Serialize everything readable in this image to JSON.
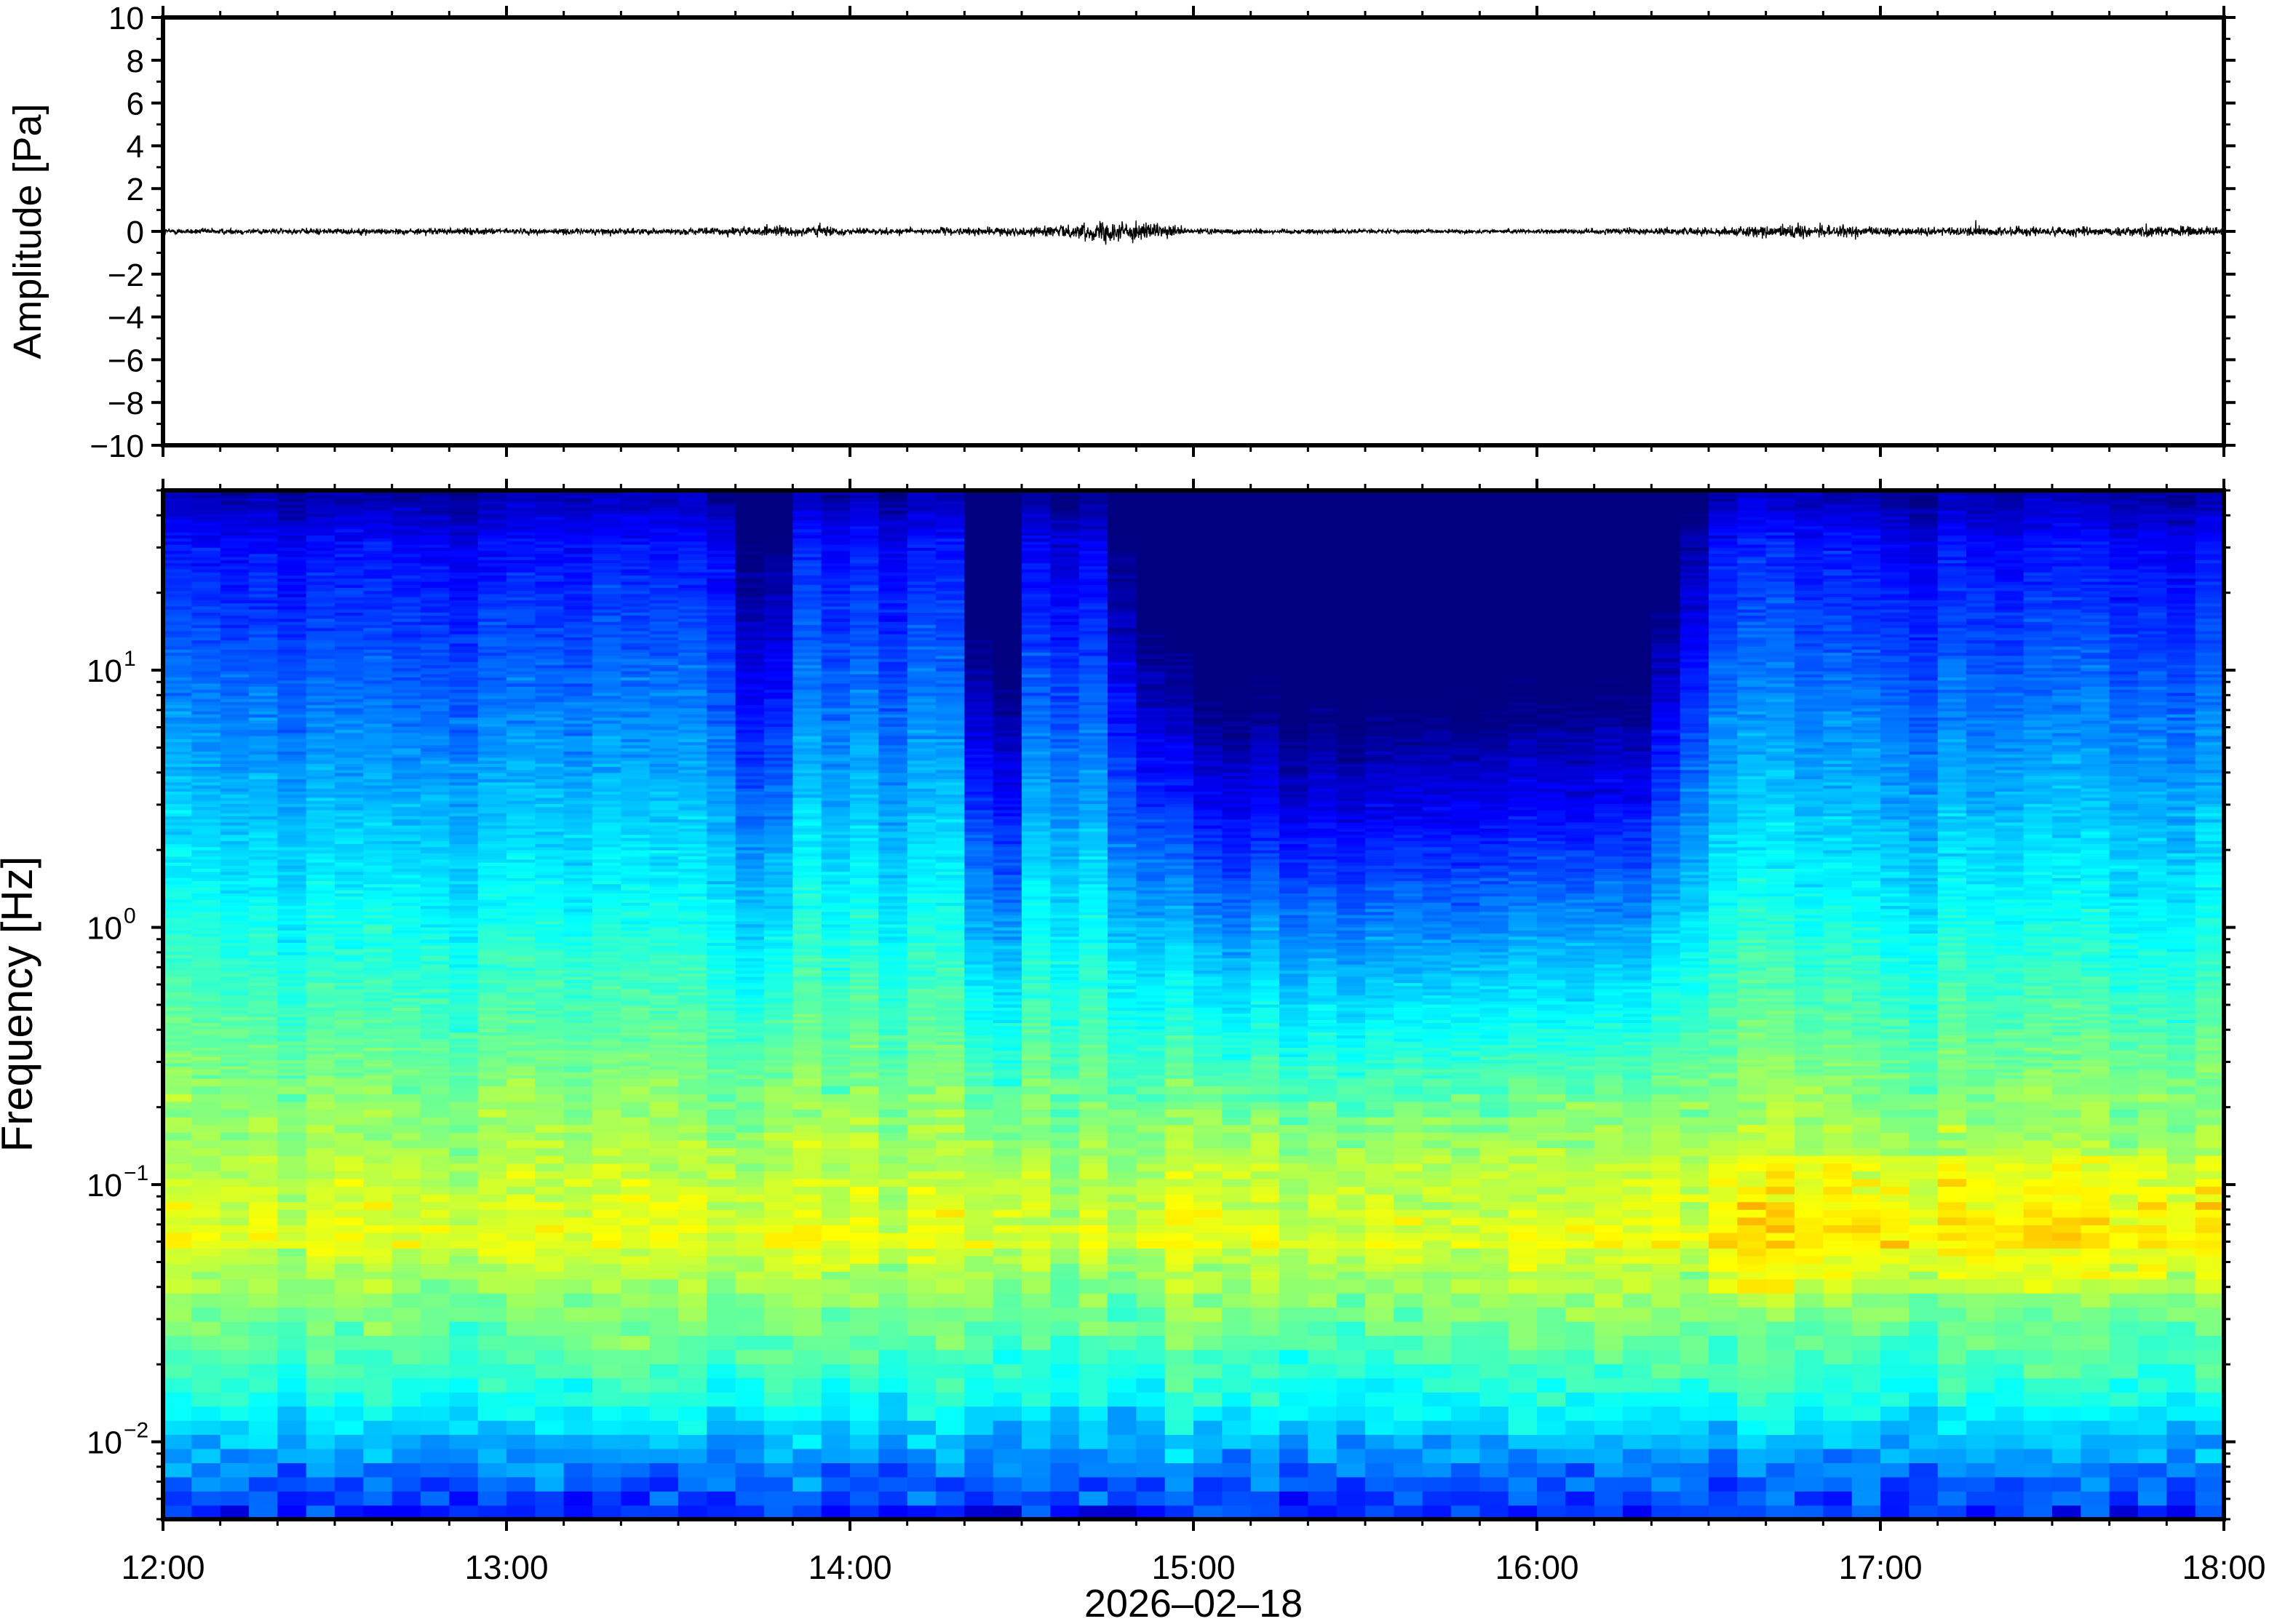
{
  "chart_data": [
    {
      "type": "line",
      "panel": "waveform",
      "ylabel": "Amplitude [Pa]",
      "ylim": [
        -10,
        10
      ],
      "y_ticks": [
        -10,
        -8,
        -6,
        -4,
        -2,
        0,
        2,
        4,
        6,
        8,
        10
      ],
      "y_tick_labels": [
        "−10",
        "−8",
        "−6",
        "−4",
        "−2",
        "0",
        "2",
        "4",
        "6",
        "8",
        "10"
      ],
      "x_range_hours": [
        12,
        18
      ],
      "envelope": {
        "x_hours": [
          12.0,
          12.5,
          13.0,
          13.5,
          13.9,
          14.0,
          14.5,
          14.7,
          14.75,
          15.0,
          15.5,
          16.0,
          16.5,
          16.8,
          17.0,
          17.5,
          18.0
        ],
        "amplitude_pa": [
          0.3,
          0.3,
          0.3,
          0.3,
          0.6,
          0.3,
          0.4,
          0.8,
          1.2,
          0.3,
          0.2,
          0.2,
          0.4,
          0.7,
          0.4,
          0.5,
          0.5
        ]
      },
      "line_color": "#000000"
    },
    {
      "type": "heatmap",
      "panel": "spectrogram",
      "ylabel": "Frequency [Hz]",
      "y_scale": "log",
      "ylim_hz": [
        0.005,
        50
      ],
      "y_tick_labels": [
        {
          "value": 0.01,
          "base": "10",
          "exp": "−2"
        },
        {
          "value": 0.1,
          "base": "10",
          "exp": "−1"
        },
        {
          "value": 1,
          "base": "10",
          "exp": "0"
        },
        {
          "value": 10,
          "base": "10",
          "exp": "1"
        }
      ],
      "x_range_hours": [
        12,
        18
      ],
      "x_tick_labels": [
        "12:00",
        "13:00",
        "14:00",
        "15:00",
        "16:00",
        "17:00",
        "18:00"
      ],
      "x_date_label": "2026–02–18",
      "colormap": "jet",
      "colormap_stops": [
        "#000080",
        "#0000ff",
        "#0080ff",
        "#00ffff",
        "#80ff80",
        "#ffff00",
        "#ff8000",
        "#ff0000"
      ],
      "dark_high_freq_window_hours": [
        14.95,
        16.35
      ],
      "dark_streak_hours": [
        13.75,
        14.4,
        14.45
      ]
    }
  ]
}
